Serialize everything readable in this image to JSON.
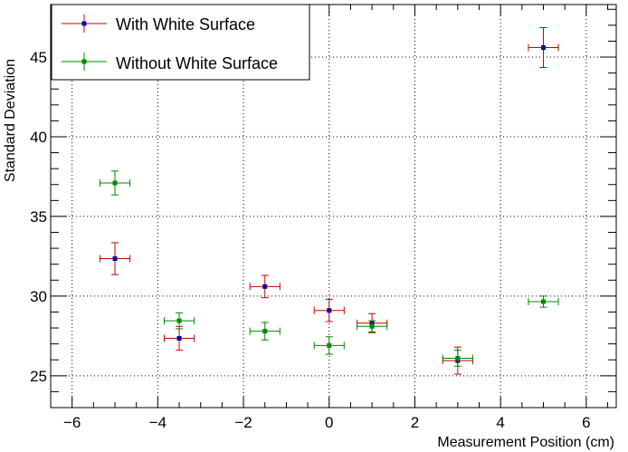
{
  "chart_data": {
    "type": "scatter",
    "title": "",
    "xlabel": "Measurement Position (cm)",
    "ylabel": "Standard Deviation",
    "xlim": [
      -6.5,
      6.7
    ],
    "ylim": [
      23,
      48.3
    ],
    "x_ticks": [
      -6,
      -4,
      -2,
      0,
      2,
      4,
      6
    ],
    "y_ticks": [
      25,
      30,
      35,
      40,
      45
    ],
    "grid": true,
    "legend_position": "top-left",
    "series": [
      {
        "name": "With White Surface",
        "line_color": "#cc0000",
        "marker_color": "#0000aa",
        "x": [
          -5,
          -3.5,
          -1.5,
          0,
          1,
          3,
          5
        ],
        "y": [
          32.35,
          27.35,
          30.6,
          29.1,
          28.3,
          25.95,
          45.6
        ],
        "x_err": [
          0.35,
          0.35,
          0.35,
          0.35,
          0.35,
          0.35,
          0.35
        ],
        "y_err": [
          1.0,
          0.75,
          0.7,
          0.7,
          0.6,
          0.85,
          1.25
        ]
      },
      {
        "name": "Without White Surface",
        "line_color": "#008800",
        "marker_color": "#008800",
        "x": [
          -5,
          -3.5,
          -1.5,
          0,
          1,
          3,
          5
        ],
        "y": [
          37.1,
          28.45,
          27.8,
          26.9,
          28.1,
          26.1,
          29.65
        ],
        "x_err": [
          0.35,
          0.35,
          0.35,
          0.35,
          0.35,
          0.35,
          0.35
        ],
        "y_err": [
          0.75,
          0.5,
          0.55,
          0.55,
          0.35,
          0.5,
          0.35
        ]
      }
    ]
  }
}
